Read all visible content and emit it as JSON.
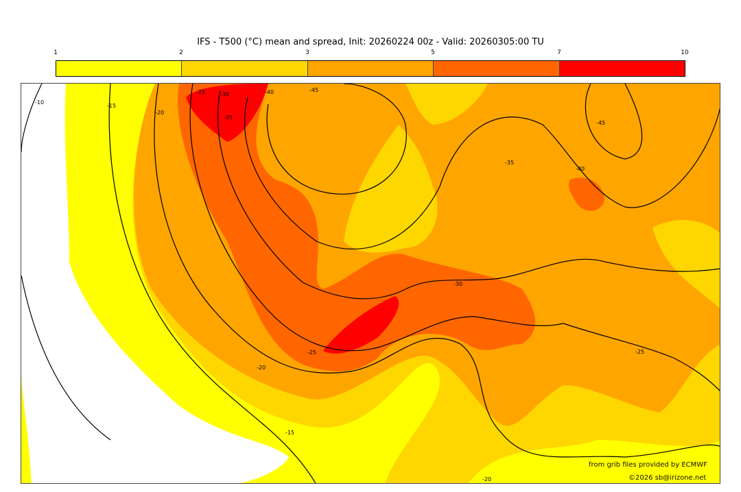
{
  "title": "IFS - T500 (°C) mean and spread, Init: 20260224 00z - Valid: 20260305:00 TU",
  "colorbar": {
    "ticks": [
      "1",
      "2",
      "3",
      "5",
      "7",
      "10"
    ],
    "colors": [
      "#ffff00",
      "#ffd700",
      "#ffa500",
      "#ff6600",
      "#ff0000"
    ]
  },
  "map": {
    "contour_labels": [
      "-10",
      "-15",
      "-20",
      "-25",
      "-30",
      "-35",
      "-40",
      "-45",
      "-45",
      "-40",
      "-35",
      "-30",
      "-25",
      "-20",
      "-15",
      "-20",
      "-25"
    ]
  },
  "credits": {
    "source": "from grib files provided by ECMWF",
    "copyright": "©2026 sb@irizone.net"
  }
}
